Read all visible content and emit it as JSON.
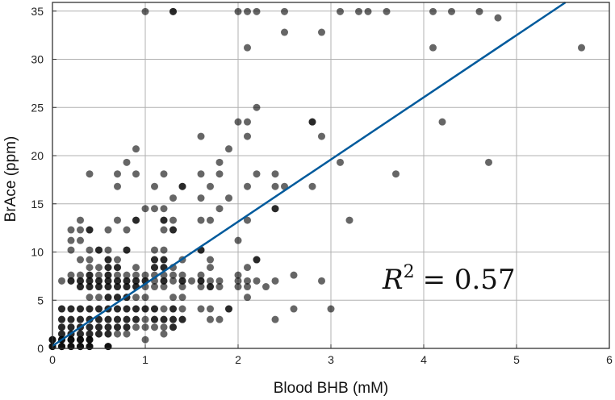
{
  "chart_data": {
    "type": "scatter",
    "xlabel": "Blood BHB (mM)",
    "ylabel": "BrAce (ppm)",
    "xlim": [
      0,
      6
    ],
    "ylim": [
      0,
      35.9
    ],
    "xticks": [
      0,
      1,
      2,
      3,
      4,
      5,
      6
    ],
    "yticks": [
      0,
      5,
      10,
      15,
      20,
      25,
      30,
      35
    ],
    "grid": true,
    "annotation": {
      "label": "R",
      "superscript": "2",
      "text": "= 0.57"
    },
    "colors": {
      "points": "#000000",
      "point_opacity": 0.6,
      "fit_line": "#005a9c",
      "grid": "#b0b0b0"
    },
    "fit_line": {
      "slope": 6.45,
      "intercept": 0.25
    },
    "points_note_format": "[x, y, overlapping count]",
    "points": [
      [
        0,
        0.2,
        3
      ],
      [
        0.1,
        0.2,
        3
      ],
      [
        0.2,
        0.2,
        3
      ],
      [
        0.3,
        0.2,
        3
      ],
      [
        0.4,
        0.2,
        3
      ],
      [
        0.6,
        0.2,
        3
      ],
      [
        0,
        0.9,
        3
      ],
      [
        0.1,
        0.9,
        3
      ],
      [
        0.2,
        0.9,
        3
      ],
      [
        0.3,
        0.9,
        3
      ],
      [
        0.4,
        0.9,
        3
      ],
      [
        1.0,
        0.9,
        1
      ],
      [
        0.1,
        1.5,
        2
      ],
      [
        0.2,
        1.5,
        2
      ],
      [
        0.3,
        1.5,
        2
      ],
      [
        0.4,
        1.5,
        2
      ],
      [
        0.5,
        1.5,
        2
      ],
      [
        0.6,
        1.5,
        2
      ],
      [
        0.7,
        1.5,
        1
      ],
      [
        0.8,
        1.5,
        1
      ],
      [
        1.2,
        1.5,
        1
      ],
      [
        0.1,
        2.2,
        2
      ],
      [
        0.2,
        2.2,
        2
      ],
      [
        0.3,
        2.2,
        2
      ],
      [
        0.4,
        2.2,
        2
      ],
      [
        0.5,
        2.2,
        2
      ],
      [
        0.6,
        2.2,
        2
      ],
      [
        0.7,
        2.2,
        2
      ],
      [
        0.8,
        2.2,
        2
      ],
      [
        0.9,
        2.2,
        1
      ],
      [
        1.0,
        2.2,
        1
      ],
      [
        1.1,
        2.2,
        1
      ],
      [
        1.2,
        2.2,
        1
      ],
      [
        1.3,
        2.2,
        2
      ],
      [
        0.1,
        3.0,
        2
      ],
      [
        0.2,
        3.0,
        2
      ],
      [
        0.3,
        3.0,
        2
      ],
      [
        0.4,
        3.0,
        2
      ],
      [
        0.5,
        3.0,
        2
      ],
      [
        0.6,
        3.0,
        2
      ],
      [
        0.7,
        3.0,
        2
      ],
      [
        0.8,
        3.0,
        2
      ],
      [
        0.9,
        3.0,
        2
      ],
      [
        1.0,
        3.0,
        1
      ],
      [
        1.1,
        3.0,
        2
      ],
      [
        1.2,
        3.0,
        2
      ],
      [
        1.3,
        3.0,
        2
      ],
      [
        1.4,
        3.0,
        2
      ],
      [
        1.7,
        3.0,
        1
      ],
      [
        1.8,
        3.0,
        1
      ],
      [
        2.4,
        3.0,
        1
      ],
      [
        0.1,
        4.1,
        2
      ],
      [
        0.2,
        4.1,
        2
      ],
      [
        0.3,
        4.1,
        2
      ],
      [
        0.4,
        4.1,
        2
      ],
      [
        0.5,
        4.1,
        2
      ],
      [
        0.6,
        4.1,
        2
      ],
      [
        0.7,
        4.1,
        2
      ],
      [
        0.8,
        4.1,
        2
      ],
      [
        0.9,
        4.1,
        2
      ],
      [
        1.0,
        4.1,
        2
      ],
      [
        1.1,
        4.1,
        2
      ],
      [
        1.2,
        4.1,
        1
      ],
      [
        1.3,
        4.1,
        2
      ],
      [
        1.4,
        4.1,
        1
      ],
      [
        1.6,
        4.1,
        1
      ],
      [
        1.7,
        4.1,
        1
      ],
      [
        1.9,
        4.1,
        2
      ],
      [
        2.6,
        4.1,
        1
      ],
      [
        3.0,
        4.1,
        1
      ],
      [
        0.4,
        5.3,
        1
      ],
      [
        0.5,
        5.3,
        1
      ],
      [
        0.6,
        5.3,
        2
      ],
      [
        0.7,
        5.3,
        2
      ],
      [
        0.8,
        5.3,
        2
      ],
      [
        0.9,
        5.3,
        1
      ],
      [
        1.0,
        5.3,
        1
      ],
      [
        1.3,
        5.3,
        1
      ],
      [
        1.4,
        5.3,
        1
      ],
      [
        2.1,
        5.3,
        1
      ],
      [
        0.3,
        6.4,
        2
      ],
      [
        0.4,
        6.4,
        2
      ],
      [
        0.5,
        6.4,
        2
      ],
      [
        0.6,
        6.4,
        2
      ],
      [
        0.7,
        6.4,
        2
      ],
      [
        0.8,
        6.4,
        2
      ],
      [
        0.9,
        6.4,
        2
      ],
      [
        1.0,
        6.4,
        1
      ],
      [
        1.1,
        6.4,
        1
      ],
      [
        1.2,
        6.4,
        1
      ],
      [
        1.4,
        6.4,
        1
      ],
      [
        1.6,
        6.4,
        1
      ],
      [
        1.7,
        6.4,
        2
      ],
      [
        1.8,
        6.4,
        1
      ],
      [
        2.0,
        6.4,
        1
      ],
      [
        2.1,
        6.4,
        1
      ],
      [
        2.3,
        6.4,
        1
      ],
      [
        0.1,
        7.0,
        1
      ],
      [
        0.2,
        7.0,
        2
      ],
      [
        0.3,
        7.0,
        2
      ],
      [
        0.4,
        7.0,
        2
      ],
      [
        0.5,
        7.0,
        2
      ],
      [
        0.6,
        7.0,
        2
      ],
      [
        0.7,
        7.0,
        2
      ],
      [
        0.8,
        7.0,
        2
      ],
      [
        0.9,
        7.0,
        2
      ],
      [
        1.0,
        7.0,
        2
      ],
      [
        1.1,
        7.0,
        1
      ],
      [
        1.2,
        7.0,
        2
      ],
      [
        1.3,
        7.0,
        1
      ],
      [
        1.4,
        7.0,
        2
      ],
      [
        1.5,
        7.0,
        1
      ],
      [
        1.6,
        7.0,
        2
      ],
      [
        1.7,
        7.0,
        1
      ],
      [
        1.8,
        7.0,
        1
      ],
      [
        2.0,
        7.0,
        1
      ],
      [
        2.1,
        7.0,
        1
      ],
      [
        2.2,
        7.0,
        1
      ],
      [
        2.4,
        7.0,
        1
      ],
      [
        2.9,
        7.0,
        1
      ],
      [
        0.2,
        7.6,
        1
      ],
      [
        0.3,
        7.6,
        1
      ],
      [
        0.4,
        7.6,
        2
      ],
      [
        0.5,
        7.6,
        1
      ],
      [
        0.6,
        7.6,
        2
      ],
      [
        0.7,
        7.6,
        1
      ],
      [
        0.8,
        7.6,
        1
      ],
      [
        0.9,
        7.6,
        1
      ],
      [
        1.0,
        7.6,
        1
      ],
      [
        1.1,
        7.6,
        1
      ],
      [
        1.2,
        7.6,
        1
      ],
      [
        1.3,
        7.6,
        1
      ],
      [
        1.4,
        7.6,
        1
      ],
      [
        1.6,
        7.6,
        1
      ],
      [
        2.0,
        7.6,
        1
      ],
      [
        2.6,
        7.6,
        1
      ],
      [
        0.4,
        8.4,
        1
      ],
      [
        0.5,
        8.4,
        1
      ],
      [
        0.6,
        8.4,
        2
      ],
      [
        0.7,
        8.4,
        2
      ],
      [
        0.9,
        8.4,
        1
      ],
      [
        1.1,
        8.4,
        2
      ],
      [
        1.2,
        8.4,
        2
      ],
      [
        1.3,
        8.4,
        1
      ],
      [
        1.7,
        8.4,
        1
      ],
      [
        2.1,
        8.4,
        1
      ],
      [
        0.3,
        9.2,
        1
      ],
      [
        0.4,
        9.2,
        1
      ],
      [
        0.6,
        9.2,
        2
      ],
      [
        0.7,
        9.2,
        1
      ],
      [
        1.1,
        9.2,
        2
      ],
      [
        1.2,
        9.2,
        2
      ],
      [
        1.4,
        9.2,
        1
      ],
      [
        1.7,
        9.2,
        1
      ],
      [
        2.2,
        9.2,
        2
      ],
      [
        0.2,
        10.2,
        1
      ],
      [
        0.4,
        10.2,
        1
      ],
      [
        0.5,
        10.2,
        2
      ],
      [
        0.6,
        10.2,
        1
      ],
      [
        0.8,
        10.2,
        2
      ],
      [
        1.1,
        10.2,
        1
      ],
      [
        1.2,
        10.2,
        1
      ],
      [
        1.6,
        10.2,
        2
      ],
      [
        0.2,
        11.2,
        1
      ],
      [
        0.3,
        11.2,
        1
      ],
      [
        2.0,
        11.2,
        1
      ],
      [
        0.2,
        12.3,
        1
      ],
      [
        0.3,
        12.3,
        1
      ],
      [
        0.4,
        12.3,
        2
      ],
      [
        0.6,
        12.3,
        1
      ],
      [
        0.8,
        12.3,
        1
      ],
      [
        1.2,
        12.3,
        1
      ],
      [
        1.3,
        12.3,
        2
      ],
      [
        0.3,
        13.3,
        1
      ],
      [
        0.7,
        13.3,
        1
      ],
      [
        0.9,
        13.3,
        2
      ],
      [
        1.2,
        13.3,
        2
      ],
      [
        1.3,
        13.3,
        1
      ],
      [
        1.6,
        13.3,
        1
      ],
      [
        1.7,
        13.3,
        1
      ],
      [
        2.1,
        13.3,
        1
      ],
      [
        3.2,
        13.3,
        1
      ],
      [
        1.0,
        14.5,
        1
      ],
      [
        1.1,
        14.5,
        1
      ],
      [
        1.2,
        14.5,
        1
      ],
      [
        1.8,
        14.5,
        1
      ],
      [
        2.4,
        14.5,
        2
      ],
      [
        1.3,
        15.6,
        1
      ],
      [
        1.6,
        15.6,
        1
      ],
      [
        1.9,
        15.6,
        1
      ],
      [
        0.7,
        16.8,
        1
      ],
      [
        1.1,
        16.8,
        1
      ],
      [
        1.4,
        16.8,
        2
      ],
      [
        1.7,
        16.8,
        1
      ],
      [
        2.1,
        16.8,
        1
      ],
      [
        2.4,
        16.8,
        1
      ],
      [
        2.5,
        16.8,
        1
      ],
      [
        2.8,
        16.8,
        1
      ],
      [
        0.4,
        18.1,
        1
      ],
      [
        0.7,
        18.1,
        1
      ],
      [
        0.9,
        18.1,
        1
      ],
      [
        1.2,
        18.1,
        1
      ],
      [
        1.6,
        18.1,
        1
      ],
      [
        1.8,
        18.1,
        1
      ],
      [
        2.2,
        18.1,
        1
      ],
      [
        2.4,
        18.1,
        1
      ],
      [
        3.7,
        18.1,
        1
      ],
      [
        0.8,
        19.3,
        1
      ],
      [
        1.8,
        19.3,
        1
      ],
      [
        3.1,
        19.3,
        1
      ],
      [
        4.7,
        19.3,
        1
      ],
      [
        0.9,
        20.7,
        1
      ],
      [
        1.9,
        20.7,
        1
      ],
      [
        1.6,
        22.0,
        1
      ],
      [
        2.1,
        22.0,
        1
      ],
      [
        2.9,
        22.0,
        1
      ],
      [
        2.0,
        23.5,
        1
      ],
      [
        2.1,
        23.5,
        1
      ],
      [
        2.8,
        23.5,
        2
      ],
      [
        4.2,
        23.5,
        1
      ],
      [
        2.2,
        25.0,
        1
      ],
      [
        2.1,
        31.2,
        1
      ],
      [
        4.1,
        31.2,
        1
      ],
      [
        5.7,
        31.2,
        1
      ],
      [
        2.5,
        32.8,
        1
      ],
      [
        2.9,
        32.8,
        1
      ],
      [
        4.8,
        34.3,
        1
      ],
      [
        1.0,
        35.2,
        1
      ],
      [
        1.3,
        35.2,
        2
      ],
      [
        2.0,
        35.2,
        1
      ],
      [
        2.1,
        35.2,
        1
      ],
      [
        2.2,
        35.2,
        1
      ],
      [
        2.5,
        35.2,
        1
      ],
      [
        3.1,
        35.2,
        1
      ],
      [
        3.3,
        35.2,
        1
      ],
      [
        3.4,
        35.2,
        1
      ],
      [
        3.6,
        35.2,
        1
      ],
      [
        4.1,
        35.2,
        1
      ],
      [
        4.3,
        35.2,
        1
      ],
      [
        4.6,
        35.2,
        1
      ]
    ]
  }
}
